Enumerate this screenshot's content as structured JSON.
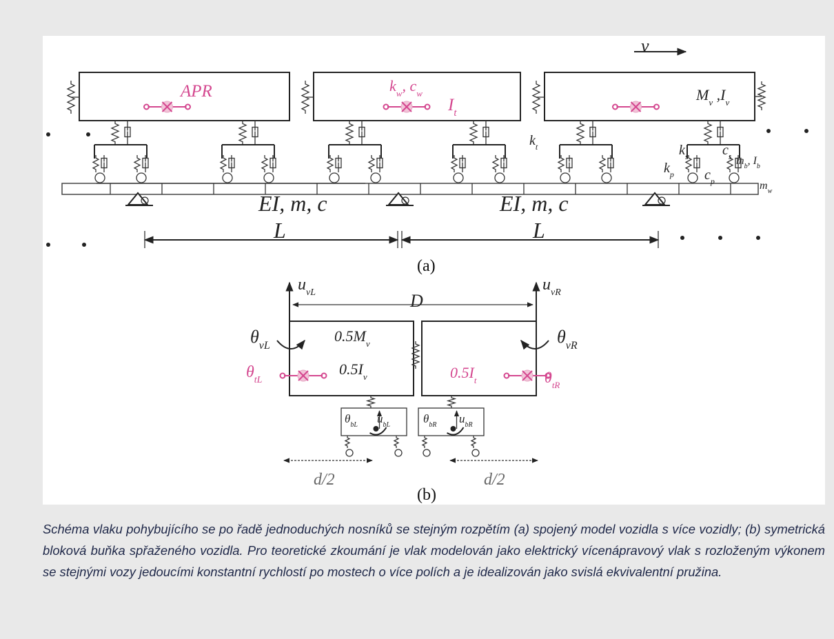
{
  "figure": {
    "part_a": {
      "labels": [
        [
          {
            "text": "v"
          }
        ],
        [
          {
            "text": "APR"
          }
        ],
        [
          {
            "text": "k"
          },
          {
            "sub": "w"
          },
          {
            "text": ", c"
          },
          {
            "sub": "w"
          }
        ],
        [
          {
            "text": "I"
          },
          {
            "sub": "t"
          }
        ],
        [
          {
            "text": "M"
          },
          {
            "sub": "v"
          },
          {
            "text": " ,I"
          },
          {
            "sub": "v"
          }
        ],
        [
          {
            "text": "k"
          },
          {
            "sub": "t"
          }
        ],
        [
          {
            "text": "k"
          },
          {
            "sub": "s"
          }
        ],
        [
          {
            "text": "c"
          },
          {
            "sub": "s"
          }
        ],
        [
          {
            "text": "m"
          },
          {
            "sub": "b"
          },
          {
            "text": ", I"
          },
          {
            "sub": "b"
          }
        ],
        [
          {
            "text": "k"
          },
          {
            "sub": "p"
          }
        ],
        [
          {
            "text": "c"
          },
          {
            "sub": "p"
          }
        ],
        [
          {
            "text": "m"
          },
          {
            "sub": "w"
          }
        ],
        [
          {
            "text": "EI, m, c"
          }
        ],
        [
          {
            "text": "EI, m, c"
          }
        ],
        [
          {
            "text": "L"
          }
        ],
        [
          {
            "text": "L"
          }
        ],
        [
          {
            "text": "(a)"
          }
        ]
      ]
    },
    "part_b": {
      "labels": [
        [
          {
            "text": "u"
          },
          {
            "sub": "vL"
          }
        ],
        [
          {
            "text": "u"
          },
          {
            "sub": "vR"
          }
        ],
        [
          {
            "text": "D"
          }
        ],
        [
          {
            "text": "θ"
          },
          {
            "sub": "vL"
          }
        ],
        [
          {
            "text": "θ"
          },
          {
            "sub": "vR"
          }
        ],
        [
          {
            "text": "0.5M"
          },
          {
            "sub": "v"
          }
        ],
        [
          {
            "text": "0.5I"
          },
          {
            "sub": "v"
          }
        ],
        [
          {
            "text": "θ"
          },
          {
            "sub": "tL"
          }
        ],
        [
          {
            "text": "0.5I"
          },
          {
            "sub": "t"
          }
        ],
        [
          {
            "text": "θ"
          },
          {
            "sub": "tR"
          }
        ],
        [
          {
            "text": "θ"
          },
          {
            "sub": "bL"
          }
        ],
        [
          {
            "text": "u"
          },
          {
            "sub": "bL"
          }
        ],
        [
          {
            "text": "θ"
          },
          {
            "sub": "bR"
          }
        ],
        [
          {
            "text": "u"
          },
          {
            "sub": "bR"
          }
        ],
        [
          {
            "text": "d/2"
          }
        ],
        [
          {
            "text": "d/2"
          }
        ],
        [
          {
            "text": "(b)"
          }
        ]
      ]
    },
    "caption": "Schéma vlaku pohybujícího se po řadě jednoduchých nosníků se stejným rozpětím (a) spojený model vozidla s více vozidly; (b) symetrická bloková buňka spřaženého vozidla. Pro teoretické zkoumání je vlak modelován jako elektrický vícenápravový vlak s rozloženým výkonem se stejnými vozy jedoucími konstantní rychlostí po mostech o více polích a je idealizován jako svislá ekvivalentní pružina."
  }
}
